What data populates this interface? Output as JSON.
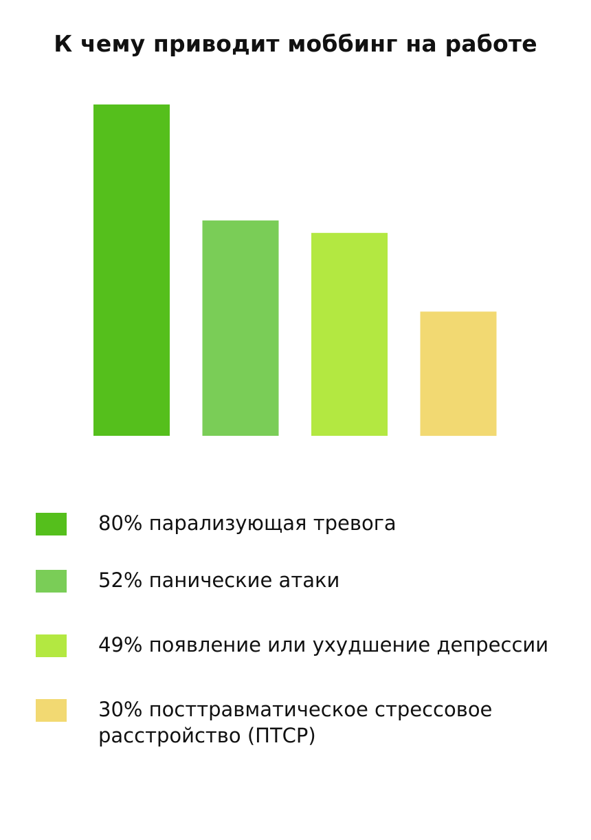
{
  "chart_data": {
    "type": "bar",
    "title": "К чему приводит моббинг на работе",
    "categories": [
      "80% парализующая тревога",
      "52% панические атаки",
      "49% появление или ухудшение депрессии",
      "30% посттравматическое стрессовое расстройство (ПТСР)"
    ],
    "values": [
      80,
      52,
      49,
      30
    ],
    "colors": [
      "#55bf1c",
      "#7acd57",
      "#b3e841",
      "#f2d972"
    ],
    "ylim": [
      0,
      80
    ],
    "grid": false,
    "legend_placement": "bottom",
    "axes_visible": false
  },
  "legend": {
    "items": [
      {
        "label": "80% парализующая тревога",
        "color": "#55bf1c"
      },
      {
        "label": "52% панические атаки",
        "color": "#7acd57"
      },
      {
        "label": "49% появление или ухудшение депрессии",
        "color": "#b3e841"
      },
      {
        "label": "30% посттравматическое стрессовое расстройство (ПТСР)",
        "color": "#f2d972"
      }
    ]
  }
}
